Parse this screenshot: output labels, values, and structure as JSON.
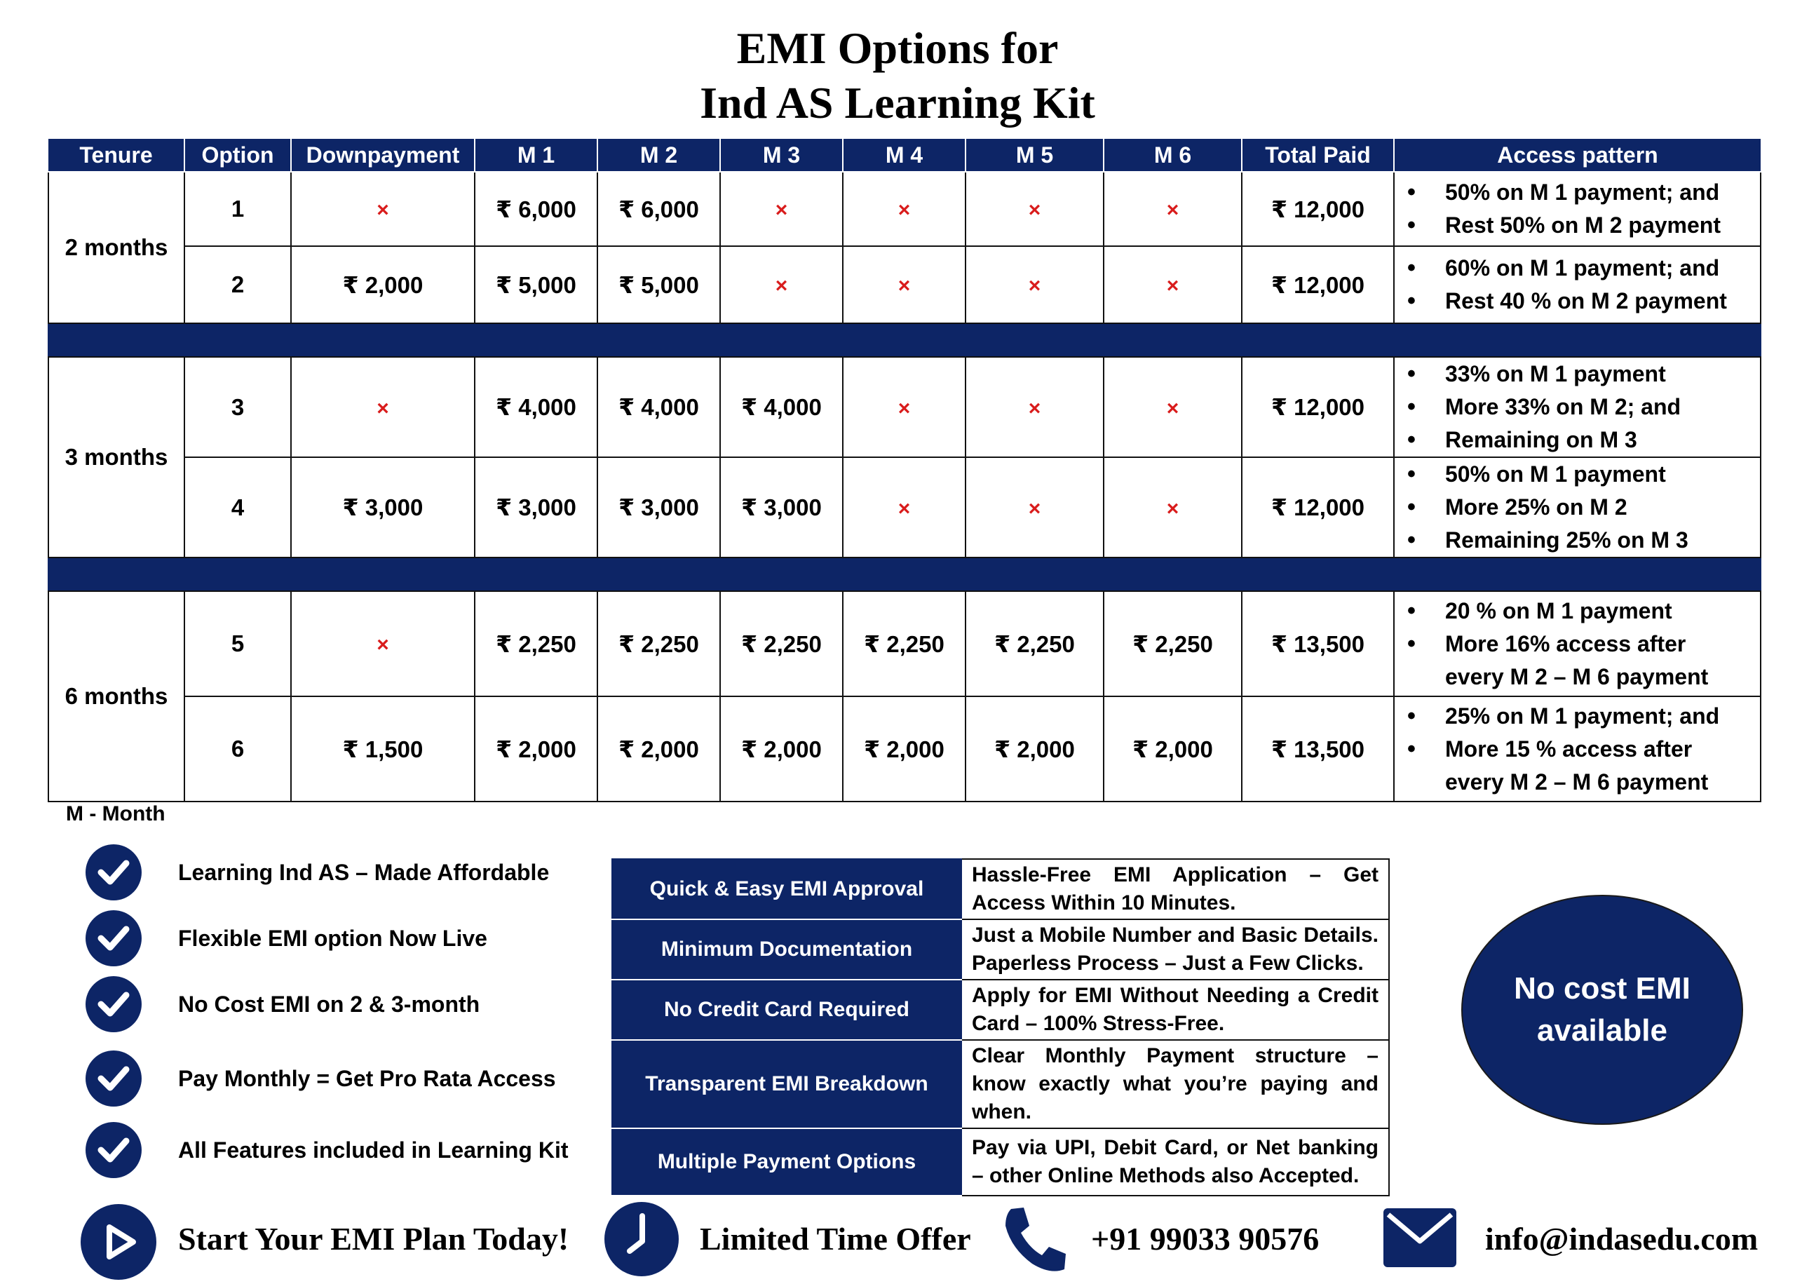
{
  "title": {
    "line1": "EMI Options for",
    "line2": "Ind AS Learning Kit"
  },
  "table": {
    "headers": [
      "Tenure",
      "Option",
      "Downpayment",
      "M 1",
      "M 2",
      "M 3",
      "M 4",
      "M 5",
      "M 6",
      "Total Paid",
      "Access pattern"
    ],
    "not_available_symbol": "×",
    "groups": [
      {
        "tenure": "2 months",
        "rows": [
          {
            "option": "1",
            "downpayment": "×",
            "m1": "₹ 6,000",
            "m2": "₹ 6,000",
            "m3": "×",
            "m4": "×",
            "m5": "×",
            "m6": "×",
            "total": "₹ 12,000",
            "access": [
              "50% on M 1 payment; and",
              "Rest  50% on M 2 payment"
            ]
          },
          {
            "option": "2",
            "downpayment": "₹ 2,000",
            "m1": "₹ 5,000",
            "m2": "₹ 5,000",
            "m3": "×",
            "m4": "×",
            "m5": "×",
            "m6": "×",
            "total": "₹ 12,000",
            "access": [
              "60% on M 1 payment; and",
              "Rest 40 % on M 2 payment"
            ]
          }
        ]
      },
      {
        "tenure": "3 months",
        "rows": [
          {
            "option": "3",
            "downpayment": "×",
            "m1": "₹ 4,000",
            "m2": "₹ 4,000",
            "m3": "₹ 4,000",
            "m4": "×",
            "m5": "×",
            "m6": "×",
            "total": "₹ 12,000",
            "access": [
              "33% on M 1 payment",
              "More 33% on M 2; and",
              "Remaining on M 3"
            ]
          },
          {
            "option": "4",
            "downpayment": "₹ 3,000",
            "m1": "₹ 3,000",
            "m2": "₹ 3,000",
            "m3": "₹ 3,000",
            "m4": "×",
            "m5": "×",
            "m6": "×",
            "total": "₹ 12,000",
            "access": [
              "50% on M 1 payment",
              "More 25% on M 2",
              "Remaining 25% on M 3"
            ]
          }
        ]
      },
      {
        "tenure": "6 months",
        "rows": [
          {
            "option": "5",
            "downpayment": "×",
            "m1": "₹ 2,250",
            "m2": "₹ 2,250",
            "m3": "₹ 2,250",
            "m4": "₹ 2,250",
            "m5": "₹ 2,250",
            "m6": "₹ 2,250",
            "total": "₹ 13,500",
            "access": [
              "20 % on M 1 payment",
              "More 16% access after",
              "every M 2 – M 6 payment"
            ]
          },
          {
            "option": "6",
            "downpayment": "₹ 1,500",
            "m1": "₹ 2,000",
            "m2": "₹ 2,000",
            "m3": "₹ 2,000",
            "m4": "₹ 2,000",
            "m5": "₹ 2,000",
            "m6": "₹ 2,000",
            "total": "₹ 13,500",
            "access": [
              "25% on M 1 payment; and",
              "More 15 % access after",
              "every M 2 – M 6 payment"
            ]
          }
        ]
      }
    ]
  },
  "month_note": "M - Month",
  "features": [
    "Learning Ind AS – Made Affordable",
    "Flexible EMI option Now Live",
    "No Cost EMI on 2 & 3-month",
    "Pay Monthly = Get Pro Rata Access",
    "All Features included in Learning Kit"
  ],
  "benefits": [
    {
      "label": "Quick & Easy EMI Approval",
      "desc": "Hassle-Free EMI Application – Get Access Within 10 Minutes."
    },
    {
      "label": "Minimum Documentation",
      "desc": "Just a Mobile Number and Basic Details. Paperless Process – Just a Few Clicks."
    },
    {
      "label": "No Credit Card Required",
      "desc": "Apply for EMI Without Needing a Credit Card – 100% Stress-Free."
    },
    {
      "label": "Transparent EMI Breakdown",
      "desc": "Clear Monthly Payment structure – know exactly what you’re paying and when."
    },
    {
      "label": "Multiple Payment Options",
      "desc": "Pay via UPI, Debit Card, or Net banking – other Online Methods also Accepted."
    }
  ],
  "badge": {
    "line1": "No cost EMI",
    "line2": "available"
  },
  "footer": {
    "start": "Start Your EMI Plan Today!",
    "offer": "Limited Time Offer",
    "phone": "+91 99033 90576",
    "email": "info@indasedu.com"
  },
  "colors": {
    "navy": "#0d2566",
    "cross": "#d91c1c",
    "white": "#ffffff"
  },
  "icons": [
    "check-icon",
    "play-icon",
    "clock-icon",
    "phone-icon",
    "mail-icon"
  ]
}
